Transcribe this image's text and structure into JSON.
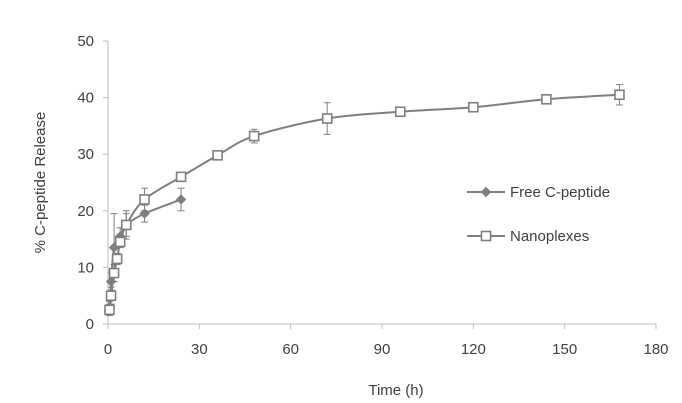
{
  "chart_data": {
    "type": "line",
    "xlabel": "Time (h)",
    "ylabel": "% C-peptide Release",
    "xlim": [
      0,
      180
    ],
    "ylim": [
      0,
      50
    ],
    "xticks": [
      0,
      30,
      60,
      90,
      120,
      150,
      180
    ],
    "yticks": [
      0,
      10,
      20,
      30,
      40,
      50
    ],
    "grid": false,
    "legend": "right",
    "colors": {
      "series": "#7f7f7f",
      "axis": "#bfbfbf",
      "text": "#404040"
    },
    "series": [
      {
        "name": "Free C-peptide",
        "marker": "diamond",
        "points": [
          {
            "x": 0.5,
            "y": 3.0,
            "err": 1.0
          },
          {
            "x": 1,
            "y": 7.5,
            "err": 1.5
          },
          {
            "x": 2,
            "y": 13.5,
            "err": 6.0
          },
          {
            "x": 4,
            "y": 15.5,
            "err": 1.5
          },
          {
            "x": 6,
            "y": 17.5,
            "err": 2.0
          },
          {
            "x": 12,
            "y": 19.5,
            "err": 1.5
          },
          {
            "x": 24,
            "y": 22.0,
            "err": 2.0
          }
        ]
      },
      {
        "name": "Nanoplexes",
        "marker": "square",
        "points": [
          {
            "x": 0.5,
            "y": 2.5,
            "err": 1.0
          },
          {
            "x": 1,
            "y": 5.0,
            "err": 1.5
          },
          {
            "x": 2,
            "y": 9.0,
            "err": 1.5
          },
          {
            "x": 3,
            "y": 11.5,
            "err": 1.0
          },
          {
            "x": 4,
            "y": 14.5,
            "err": 1.0
          },
          {
            "x": 6,
            "y": 17.5,
            "err": 2.5
          },
          {
            "x": 12,
            "y": 22.0,
            "err": 2.0
          },
          {
            "x": 24,
            "y": 26.0,
            "err": 0.8
          },
          {
            "x": 36,
            "y": 29.8,
            "err": 0.6
          },
          {
            "x": 48,
            "y": 33.2,
            "err": 1.2
          },
          {
            "x": 72,
            "y": 36.3,
            "err": 2.8
          },
          {
            "x": 96,
            "y": 37.5,
            "err": 0.6
          },
          {
            "x": 120,
            "y": 38.3,
            "err": 0.5
          },
          {
            "x": 144,
            "y": 39.7,
            "err": 0.6
          },
          {
            "x": 168,
            "y": 40.5,
            "err": 1.8
          }
        ]
      }
    ]
  }
}
